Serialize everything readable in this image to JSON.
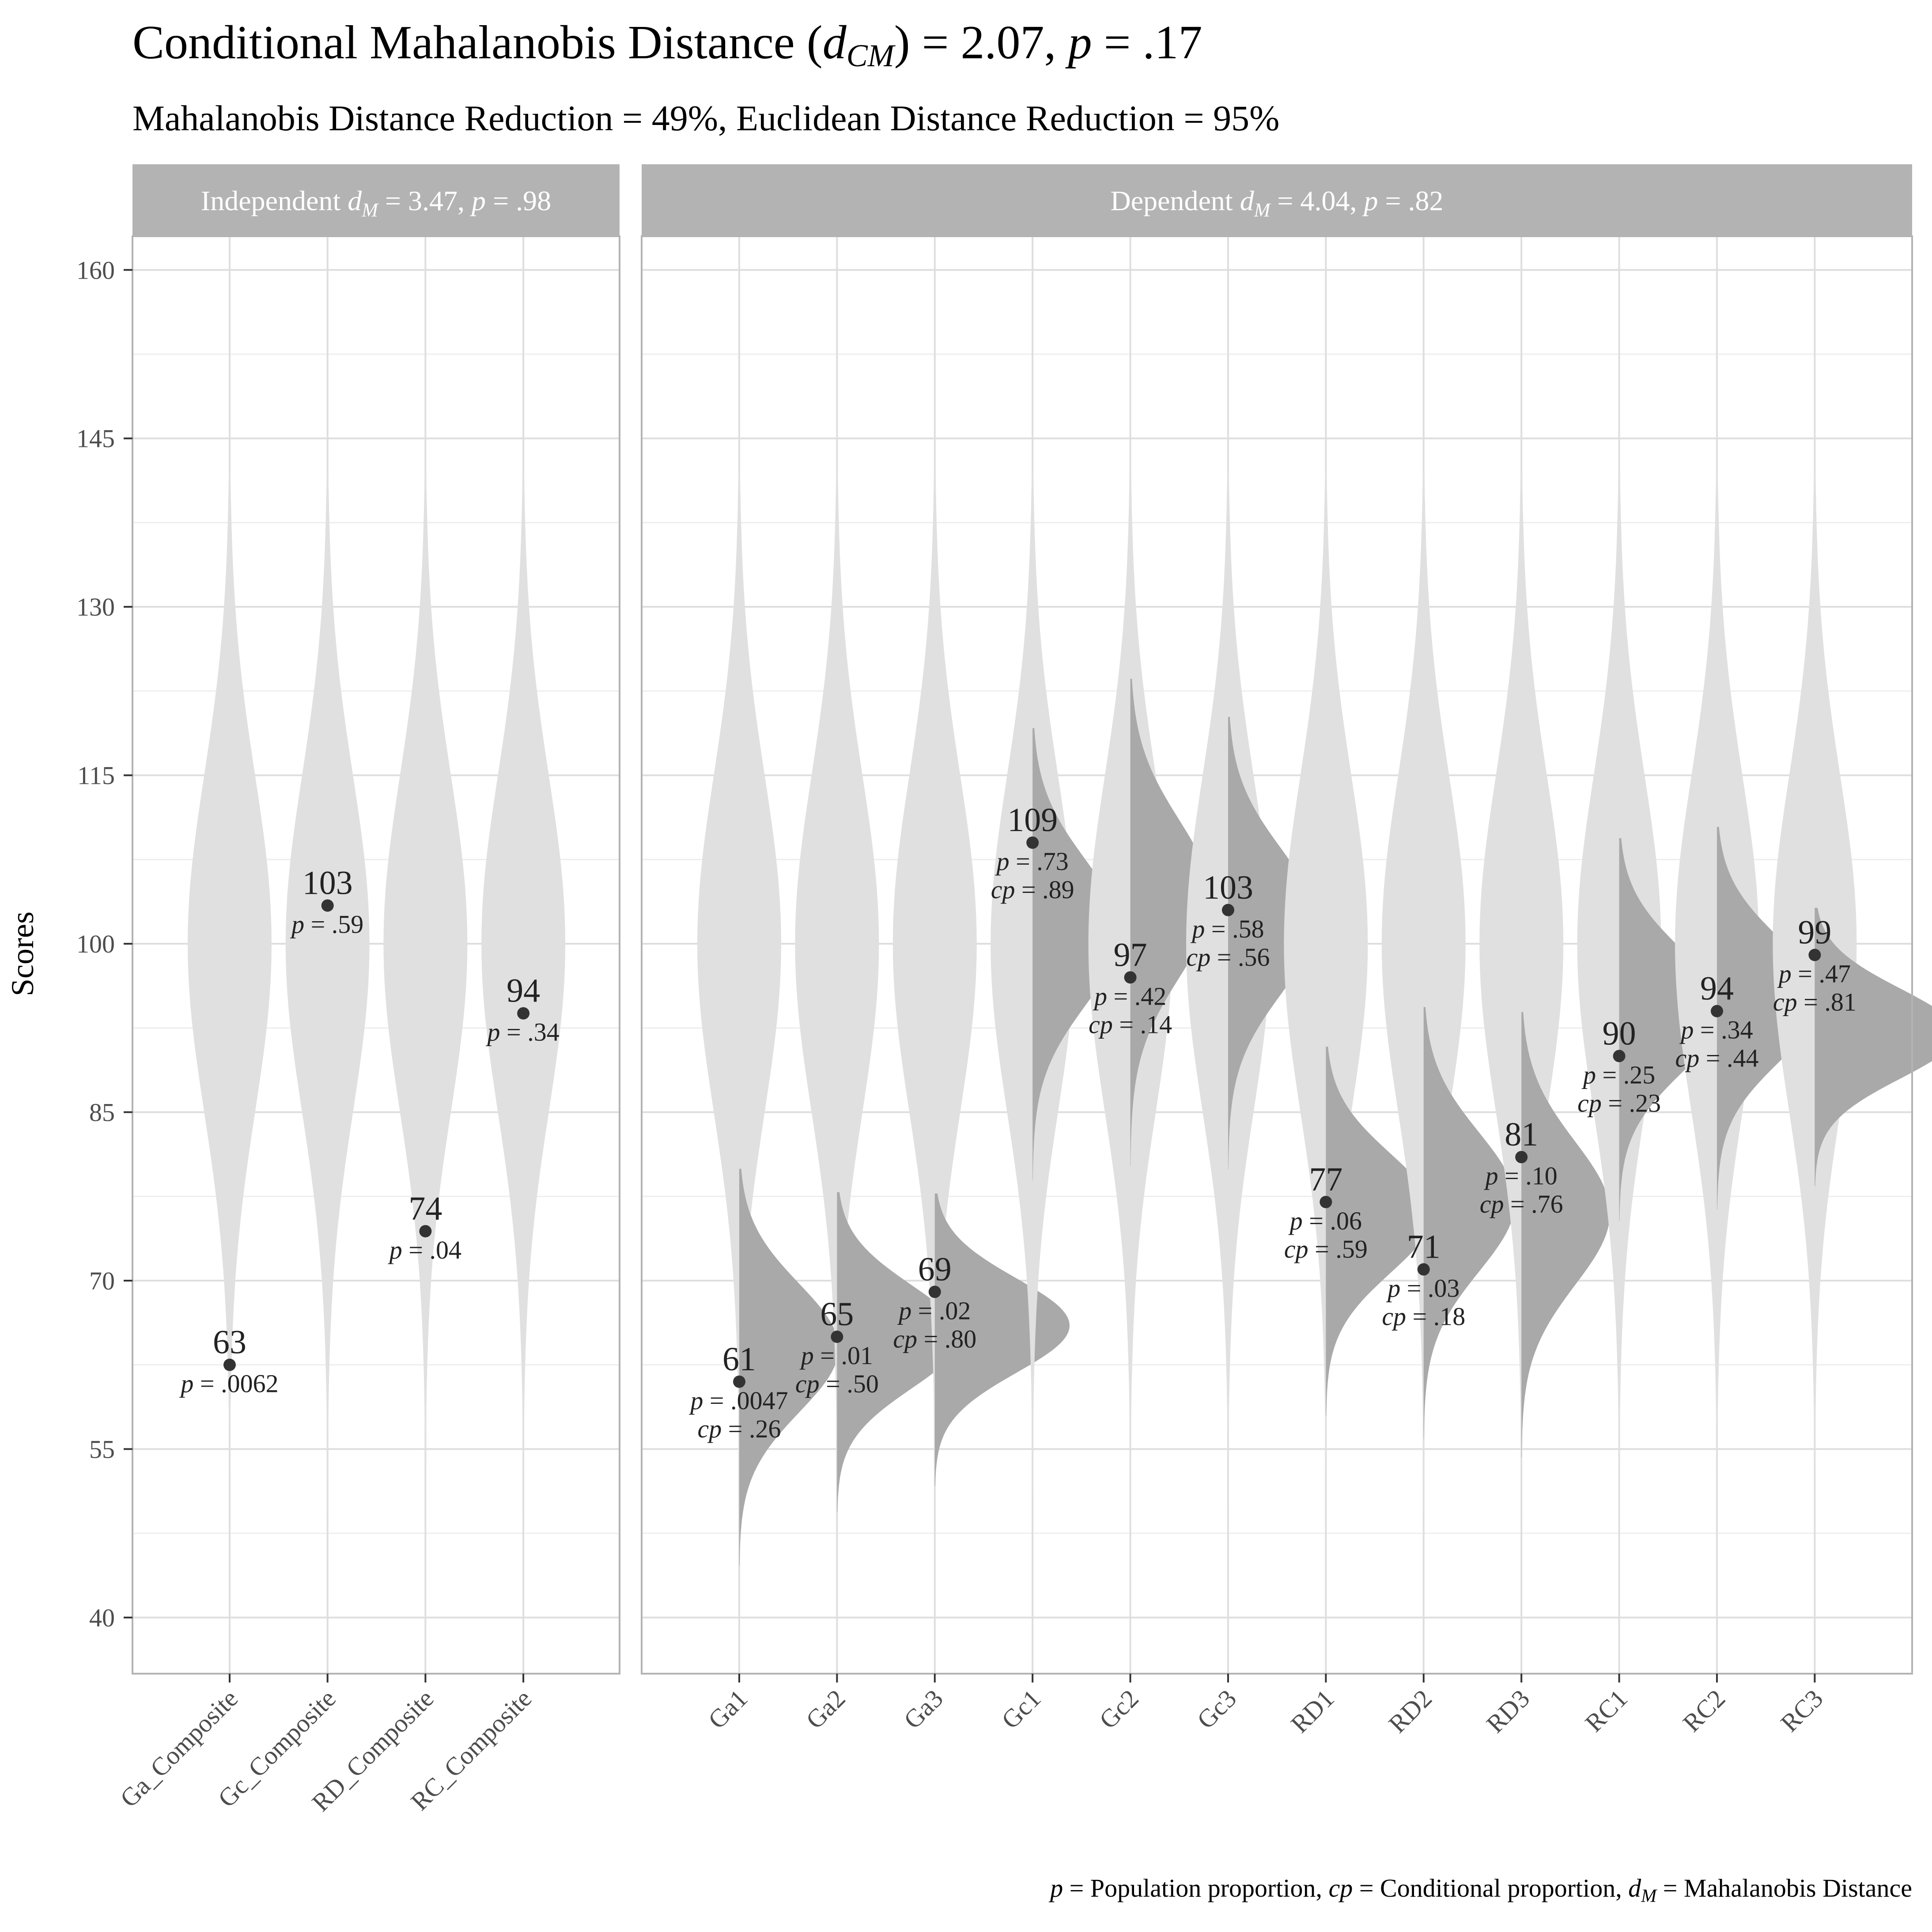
{
  "chart_data": {
    "type": "violin",
    "title": {
      "prefix": "Conditional Mahalanobis Distance (",
      "symbol": "d",
      "symbol_sub": "CM",
      "middle": ") = 2.07, ",
      "p_symbol": "p",
      "suffix": " = .17"
    },
    "subtitle": "Mahalanobis Distance Reduction = 49%, Euclidean Distance Reduction = 95%",
    "ylabel": "Scores",
    "ylim": [
      35,
      163
    ],
    "yticks": [
      40,
      55,
      70,
      85,
      100,
      115,
      130,
      145,
      160
    ],
    "grid": true,
    "caption": {
      "p_symbol": "p",
      "p_text": " = Population proportion, ",
      "cp_symbol": "cp",
      "cp_text": " = Conditional proportion, ",
      "d_symbol": "d",
      "d_sub": "M",
      "d_text": " = Mahalanobis Distance"
    },
    "panels": [
      {
        "strip": {
          "prefix": "Independent ",
          "symbol": "d",
          "sub": "M",
          "middle": " = 3.47, ",
          "p_symbol": "p",
          "suffix": " = .98"
        },
        "variables": [
          {
            "name": "Ga_Composite",
            "score": 62.5,
            "label": "63",
            "p": ".0062",
            "cp": null,
            "cond_mean": null,
            "cond_sd": null
          },
          {
            "name": "Gc_Composite",
            "score": 103.4,
            "label": "103",
            "p": ".59",
            "cp": null,
            "cond_mean": null,
            "cond_sd": null
          },
          {
            "name": "RD_Composite",
            "score": 74.4,
            "label": "74",
            "p": ".04",
            "cp": null,
            "cond_mean": null,
            "cond_sd": null
          },
          {
            "name": "RC_Composite",
            "score": 93.8,
            "label": "94",
            "p": ".34",
            "cp": null,
            "cond_mean": null,
            "cond_sd": null
          }
        ]
      },
      {
        "strip": {
          "prefix": "Dependent ",
          "symbol": "d",
          "sub": "M",
          "middle": " = 4.04, ",
          "p_symbol": "p",
          "suffix": " = .82"
        },
        "variables": [
          {
            "name": "Ga1",
            "score": 61,
            "label": "61",
            "p": ".0047",
            "cp": ".26",
            "cond_mean": 64,
            "cond_sd": 5.7
          },
          {
            "name": "Ga2",
            "score": 65,
            "label": "65",
            "p": ".01",
            "cp": ".50",
            "cond_mean": 65,
            "cond_sd": 4.6
          },
          {
            "name": "Ga3",
            "score": 69,
            "label": "69",
            "p": ".02",
            "cp": ".80",
            "cond_mean": 66,
            "cond_sd": 4.2
          },
          {
            "name": "Gc1",
            "score": 109,
            "label": "109",
            "p": ".73",
            "cp": ".89",
            "cond_mean": 101,
            "cond_sd": 6.5
          },
          {
            "name": "Gc2",
            "score": 97,
            "label": "97",
            "p": ".42",
            "cp": ".14",
            "cond_mean": 104,
            "cond_sd": 7.0
          },
          {
            "name": "Gc3",
            "score": 103,
            "label": "103",
            "p": ".58",
            "cp": ".56",
            "cond_mean": 102,
            "cond_sd": 6.5
          },
          {
            "name": "RD1",
            "score": 77,
            "label": "77",
            "p": ".06",
            "cp": ".59",
            "cond_mean": 76,
            "cond_sd": 5.3
          },
          {
            "name": "RD2",
            "score": 71,
            "label": "71",
            "p": ".03",
            "cp": ".18",
            "cond_mean": 77,
            "cond_sd": 6.2
          },
          {
            "name": "RD3",
            "score": 81,
            "label": "81",
            "p": ".10",
            "cp": ".76",
            "cond_mean": 76,
            "cond_sd": 6.4
          },
          {
            "name": "RC1",
            "score": 90,
            "label": "90",
            "p": ".25",
            "cp": ".23",
            "cond_mean": 94,
            "cond_sd": 5.5
          },
          {
            "name": "RC2",
            "score": 94,
            "label": "94",
            "p": ".34",
            "cp": ".44",
            "cond_mean": 95,
            "cond_sd": 5.5
          },
          {
            "name": "RC3",
            "score": 99,
            "label": "99",
            "p": ".47",
            "cp": ".81",
            "cond_mean": 92,
            "cond_sd": 4.0
          }
        ]
      }
    ],
    "population": {
      "mean": 100,
      "sd": 15
    },
    "colors": {
      "population": "#e0e0e0",
      "conditional": "#a9a9a9",
      "strip": "#b3b3b3",
      "point": "#333333",
      "grid_major": "#dedede",
      "grid_minor": "#eeeeee",
      "panel_border": "#b3b3b3"
    }
  }
}
